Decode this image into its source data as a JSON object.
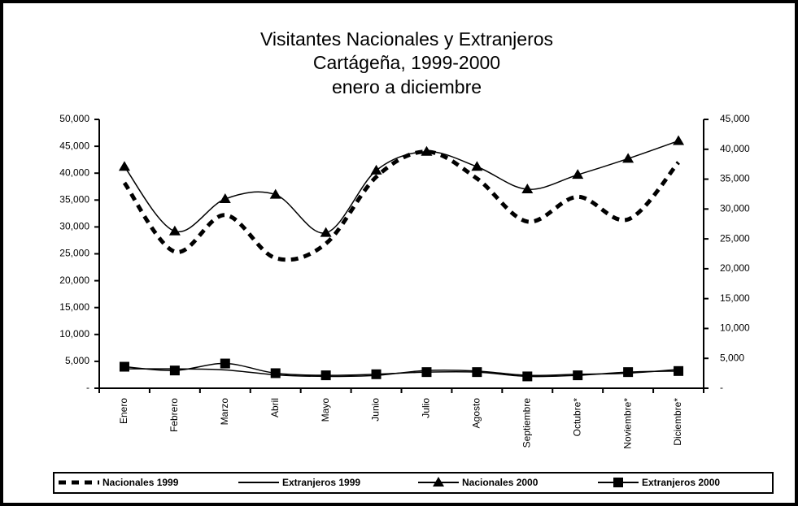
{
  "chart_data": {
    "type": "line",
    "title": [
      "Visitantes Nacionales y Extranjeros",
      "Cartágeña, 1999-2000",
      "enero a diciembre"
    ],
    "categories": [
      "Enero",
      "Febrero",
      "Marzo",
      "Abril",
      "Mayo",
      "Junio",
      "Julio",
      "Agosto",
      "Septiembre",
      "Octubre*",
      "Noviembre*",
      "Diciembre*"
    ],
    "series": [
      {
        "name": "Nacionales 1999",
        "color": "#000000",
        "dash": true,
        "marker": null,
        "values": [
          38200,
          25400,
          32200,
          24200,
          26900,
          39300,
          44000,
          39000,
          31000,
          35600,
          31400,
          42000
        ]
      },
      {
        "name": "Extranjeros 1999",
        "color": "#000000",
        "dash": false,
        "marker": null,
        "values": [
          3600,
          3600,
          3400,
          2500,
          2200,
          2400,
          3300,
          3200,
          2400,
          2600,
          2800,
          3500
        ]
      },
      {
        "name": "Nacionales 2000",
        "color": "#000000",
        "dash": false,
        "marker": "triangle",
        "values": [
          41200,
          29200,
          35200,
          36000,
          28900,
          40500,
          44000,
          41200,
          37000,
          39700,
          42700,
          46000
        ]
      },
      {
        "name": "Extranjeros 2000",
        "color": "#000000",
        "dash": false,
        "marker": "square",
        "values": [
          4000,
          3300,
          4600,
          2800,
          2400,
          2600,
          3000,
          3000,
          2200,
          2400,
          3000,
          3200
        ]
      }
    ],
    "ylim": [
      0,
      50000
    ],
    "yticks": [
      {
        "value": 0,
        "label": "-"
      },
      {
        "value": 5000,
        "label": "5,000"
      },
      {
        "value": 10000,
        "label": "10,000"
      },
      {
        "value": 15000,
        "label": "15,000"
      },
      {
        "value": 20000,
        "label": "20,000"
      },
      {
        "value": 25000,
        "label": "25,000"
      },
      {
        "value": 30000,
        "label": "30,000"
      },
      {
        "value": 35000,
        "label": "35,000"
      },
      {
        "value": 40000,
        "label": "40,000"
      },
      {
        "value": 45000,
        "label": "45,000"
      },
      {
        "value": 50000,
        "label": "50,000"
      }
    ],
    "y2lim": [
      0,
      45000
    ],
    "y2ticks": [
      {
        "value": 0,
        "label": "-"
      },
      {
        "value": 5000,
        "label": "5,000"
      },
      {
        "value": 10000,
        "label": "10,000"
      },
      {
        "value": 15000,
        "label": "15,000"
      },
      {
        "value": 20000,
        "label": "20,000"
      },
      {
        "value": 25000,
        "label": "25,000"
      },
      {
        "value": 30000,
        "label": "30,000"
      },
      {
        "value": 35000,
        "label": "35,000"
      },
      {
        "value": 40000,
        "label": "40,000"
      },
      {
        "value": 45000,
        "label": "45,000"
      }
    ],
    "legend": "bottom"
  }
}
